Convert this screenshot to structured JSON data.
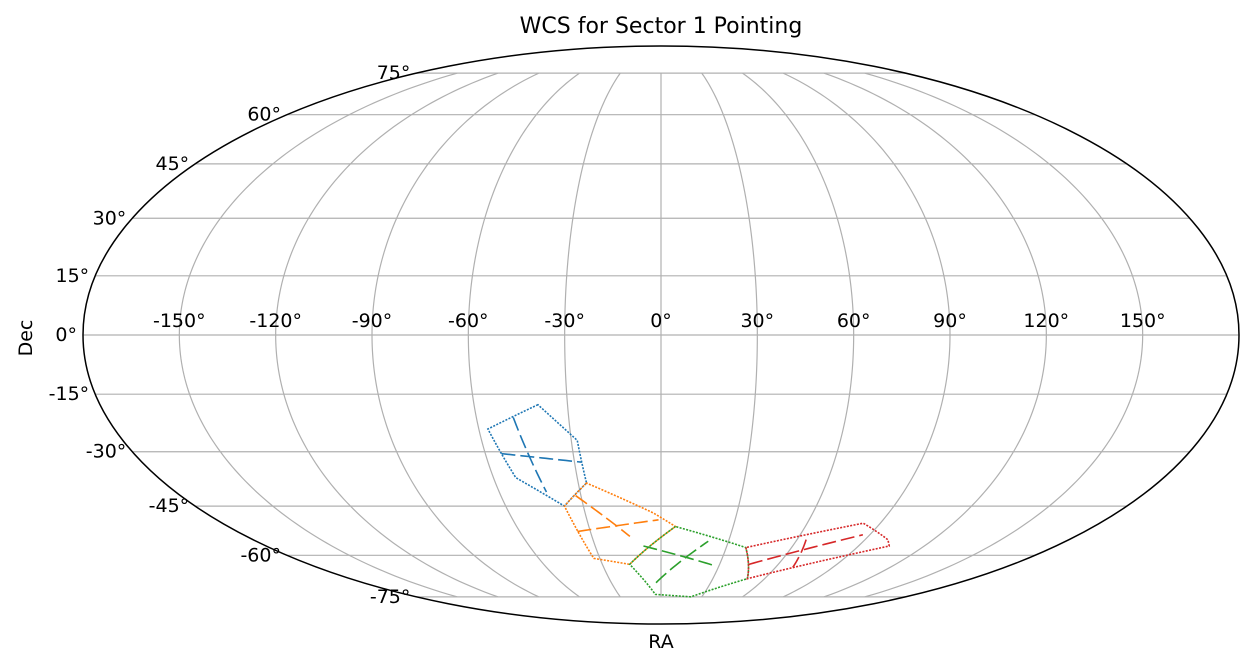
{
  "chart_data": {
    "type": "map-projection",
    "projection": "mollweide",
    "title": "WCS for Sector 1 Pointing",
    "xlabel": "RA",
    "ylabel": "Dec",
    "grid": true,
    "ra_ticks": [
      -150,
      -120,
      -90,
      -60,
      -30,
      0,
      30,
      60,
      90,
      120,
      150
    ],
    "ra_tick_labels": [
      "-150°",
      "-120°",
      "-90°",
      "-60°",
      "-30°",
      "0°",
      "30°",
      "60°",
      "90°",
      "120°",
      "150°"
    ],
    "dec_ticks": [
      75,
      60,
      45,
      30,
      15,
      0,
      -15,
      -30,
      -45,
      -60,
      -75
    ],
    "dec_tick_labels": [
      "75°",
      "60°",
      "45°",
      "30°",
      "15°",
      "0°",
      "-15°",
      "-30°",
      "-45°",
      "-60°",
      "-75°"
    ],
    "series": [
      {
        "color": "#1f77b4",
        "polygon": [
          [
            -39.5,
            -17.7
          ],
          [
            -57,
            -24
          ],
          [
            -52,
            -37
          ],
          [
            -37.3,
            -45
          ],
          [
            -27,
            -38.5
          ],
          [
            -28,
            -27
          ]
        ],
        "internal_lines": [
          [
            [
              -48,
              -21
            ],
            [
              -42.5,
              -41
            ]
          ],
          [
            [
              -54.5,
              -30.5
            ],
            [
              -27.5,
              -32.8
            ]
          ]
        ]
      },
      {
        "color": "#ff7f0e",
        "polygon": [
          [
            -27,
            -38.5
          ],
          [
            -37.3,
            -45
          ],
          [
            -33,
            -61
          ],
          [
            -16,
            -63
          ],
          [
            6,
            -51
          ],
          [
            -3,
            -47
          ]
        ],
        "internal_lines": [
          [
            [
              -32,
              -42
            ],
            [
              -13.5,
              -54
            ]
          ],
          [
            [
              -35.5,
              -52.5
            ],
            [
              -1,
              -49
            ]
          ]
        ]
      },
      {
        "color": "#2ca02c",
        "polygon": [
          [
            6,
            -51
          ],
          [
            -16,
            -63
          ],
          [
            -4,
            -74
          ],
          [
            22,
            -75
          ],
          [
            50,
            -68
          ],
          [
            39,
            -57.5
          ]
        ],
        "internal_lines": [
          [
            [
              -8,
              -57
            ],
            [
              28,
              -63.5
            ]
          ],
          [
            [
              -3,
              -69.5
            ],
            [
              21,
              -55.5
            ]
          ]
        ]
      },
      {
        "color": "#d62728",
        "polygon": [
          [
            39,
            -57.5
          ],
          [
            50,
            -68
          ],
          [
            55,
            -67
          ],
          [
            104,
            -57
          ],
          [
            100,
            -55
          ],
          [
            83,
            -50
          ]
        ],
        "internal_lines": [
          [
            [
              45,
              -63
            ],
            [
              87,
              -53.5
            ]
          ],
          [
            [
              64,
              -55
            ],
            [
              69,
              -64
            ]
          ]
        ]
      }
    ]
  }
}
